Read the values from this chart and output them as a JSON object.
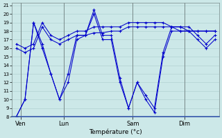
{
  "xlabel": "Température (°c)",
  "ylim": [
    8,
    21
  ],
  "yticks": [
    8,
    9,
    10,
    11,
    12,
    13,
    14,
    15,
    16,
    17,
    18,
    19,
    20,
    21
  ],
  "day_labels": [
    "Ven",
    "Lun",
    "Sam",
    "Dim"
  ],
  "day_positions": [
    0.5,
    5.5,
    13.5,
    19.5
  ],
  "vline_positions": [
    0.5,
    5.5,
    13.5,
    19.5
  ],
  "background_color": "#cce8e8",
  "grid_color": "#aacccc",
  "line_color": "#0000cc",
  "series": [
    {
      "x": [
        0,
        1,
        2,
        3,
        4,
        5,
        6,
        7,
        8,
        9,
        10,
        11,
        12,
        13,
        14,
        15,
        16,
        17,
        18,
        19,
        20,
        21,
        22,
        23
      ],
      "y": [
        8,
        10,
        19,
        16.5,
        13,
        10,
        13,
        17.5,
        17.5,
        20.5,
        17.5,
        17.5,
        12.5,
        9,
        12,
        10.5,
        9,
        15.5,
        18.5,
        18.5,
        18.5,
        17.5,
        16.5,
        17.5
      ]
    },
    {
      "x": [
        0,
        1,
        2,
        3,
        4,
        5,
        6,
        7,
        8,
        9,
        10,
        11,
        12,
        13,
        14,
        15,
        16,
        17,
        18,
        19,
        20,
        21,
        22,
        23
      ],
      "y": [
        8,
        10,
        19,
        16,
        13,
        10,
        12,
        17,
        17.5,
        20,
        17,
        17,
        12,
        9,
        12,
        10,
        8.5,
        15,
        18,
        18,
        18,
        17,
        16,
        17
      ]
    },
    {
      "x": [
        0,
        1,
        2,
        3,
        4,
        5,
        6,
        7,
        8,
        9,
        10,
        11,
        12,
        13,
        14,
        15,
        16,
        17,
        18,
        19,
        20,
        21,
        22,
        23
      ],
      "y": [
        16,
        15.5,
        16,
        18.5,
        17,
        16.5,
        17,
        17.5,
        17.5,
        17.8,
        17.8,
        18,
        18,
        18.5,
        18.5,
        18.5,
        18.5,
        18.5,
        18.5,
        18.5,
        18,
        18,
        18,
        18
      ]
    },
    {
      "x": [
        0,
        1,
        2,
        3,
        4,
        5,
        6,
        7,
        8,
        9,
        10,
        11,
        12,
        13,
        14,
        15,
        16,
        17,
        18,
        19,
        20,
        21,
        22,
        23
      ],
      "y": [
        16.5,
        16,
        16.5,
        19,
        17.5,
        17,
        17.5,
        18,
        18,
        18.5,
        18.5,
        18.5,
        18.5,
        19,
        19,
        19,
        19,
        19,
        18.5,
        18,
        18,
        18,
        18,
        18
      ]
    }
  ]
}
